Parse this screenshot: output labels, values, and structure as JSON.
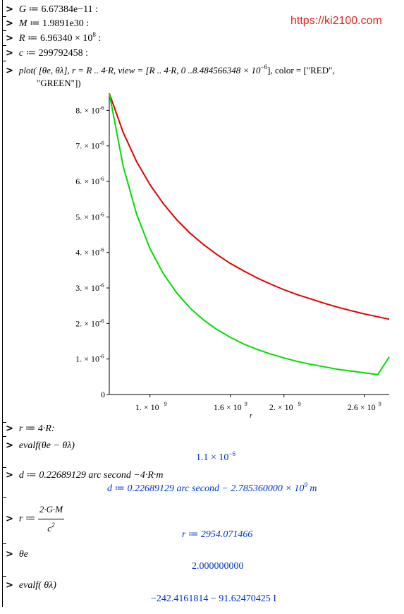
{
  "watermark": "https://ki2100.com",
  "prompt": ">",
  "inputs": {
    "G": {
      "name": "G",
      "op": " ≔ ",
      "value": "6.67384e−11 :"
    },
    "M": {
      "name": "M",
      "op": " ≔ ",
      "value": "1.9891e30 :"
    },
    "R": {
      "name": "R",
      "op": " ≔ ",
      "value_pre": "6.96340 × 10",
      "exp": "8",
      "value_post": " :"
    },
    "c": {
      "name": "c",
      "op": " ≔ ",
      "value": "299792458 :"
    },
    "plot_line1": "plot( [θe, θλ], r = R .. 4·R, view = [R ..  4·R, 0 ..8.484566348 × 10",
    "plot_exp": "−6",
    "plot_line1_end": "], color = [\"RED\",",
    "plot_line2": "\"GREEN\"])",
    "r_assign": "r ≔ 4·R:",
    "evalf_diff": "evalf(θe − θλ)",
    "d_assign": "d ≔ 0.22689129 arc second −4·R·m",
    "r_formula_lhs": "r ≔",
    "r_formula_num": "2·G·M",
    "r_formula_den": "c",
    "r_formula_den_exp": "2",
    "theta_e": "θe",
    "evalf_lambda": "evalf( θλ)"
  },
  "outputs": {
    "diff_pre": "1.1 × 10",
    "diff_exp": "−6",
    "d_pre": "d ≔ 0.22689129 arc second − 2.785360000 × 10",
    "d_exp": "9",
    "d_post": " m",
    "r_value": "r ≔ 2954.071466",
    "theta_e_value": "2.000000000",
    "lambda_value": "−242.4161814 − 91.62470425 I"
  },
  "chart_data": {
    "type": "line",
    "xlabel": "r",
    "ylabel": "",
    "xlim": [
      696340000,
      2785360000
    ],
    "ylim": [
      0,
      8.484566348e-06
    ],
    "x_ticks": [
      {
        "value": 1000000000,
        "label": "1. × 10",
        "exp": "9"
      },
      {
        "value": 1600000000,
        "label": "1.6 × 10",
        "exp": "9"
      },
      {
        "value": 2000000000,
        "label": "2. × 10",
        "exp": "9"
      },
      {
        "value": 2600000000,
        "label": "2.6 × 10",
        "exp": "9"
      }
    ],
    "y_ticks": [
      {
        "value": 0,
        "label": "0",
        "exp": ""
      },
      {
        "value": 1e-06,
        "label": "1. × 10",
        "exp": "-6"
      },
      {
        "value": 2e-06,
        "label": "2. × 10",
        "exp": "-6"
      },
      {
        "value": 3e-06,
        "label": "3. × 10",
        "exp": "-6"
      },
      {
        "value": 4e-06,
        "label": "4. × 10",
        "exp": "-6"
      },
      {
        "value": 5e-06,
        "label": "5. × 10",
        "exp": "-6"
      },
      {
        "value": 6e-06,
        "label": "6. × 10",
        "exp": "-6"
      },
      {
        "value": 7e-06,
        "label": "7. × 10",
        "exp": "-6"
      },
      {
        "value": 8e-06,
        "label": "8. × 10",
        "exp": "-6"
      }
    ],
    "series": [
      {
        "color": "#e00000",
        "x": [
          696340000,
          800000000,
          900000000,
          1000000000,
          1100000000,
          1200000000,
          1300000000,
          1400000000,
          1500000000,
          1600000000,
          1700000000,
          1800000000,
          1900000000,
          2000000000,
          2100000000,
          2200000000,
          2300000000,
          2400000000,
          2500000000,
          2600000000,
          2700000000,
          2785360000
        ],
        "y": [
          8.48e-06,
          7.38e-06,
          6.56e-06,
          5.91e-06,
          5.37e-06,
          4.92e-06,
          4.54e-06,
          4.22e-06,
          3.94e-06,
          3.69e-06,
          3.48e-06,
          3.28e-06,
          3.11e-06,
          2.95e-06,
          2.81e-06,
          2.69e-06,
          2.57e-06,
          2.46e-06,
          2.36e-06,
          2.27e-06,
          2.19e-06,
          2.12e-06
        ]
      },
      {
        "color": "#00dd00",
        "x": [
          696340000,
          800000000,
          900000000,
          1000000000,
          1100000000,
          1200000000,
          1300000000,
          1400000000,
          1500000000,
          1600000000,
          1700000000,
          1800000000,
          1900000000,
          2000000000,
          2100000000,
          2200000000,
          2300000000,
          2400000000,
          2500000000,
          2600000000,
          2700000000,
          2785360000
        ],
        "y": [
          8.48e-06,
          6.43e-06,
          5.08e-06,
          4.11e-06,
          3.4e-06,
          2.86e-06,
          2.43e-06,
          2.1e-06,
          1.83e-06,
          1.61e-06,
          1.42e-06,
          1.27e-06,
          1.14e-06,
          1.03e-06,
          9.3e-07,
          8.5e-07,
          7.8e-07,
          7.1e-07,
          6.6e-07,
          6.1e-07,
          5.6e-07,
          1.06e-06
        ]
      }
    ]
  }
}
